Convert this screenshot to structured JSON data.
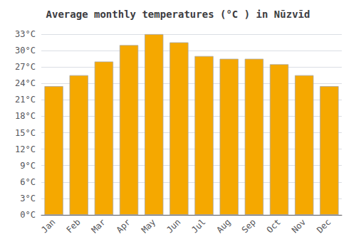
{
  "chart_data": {
    "type": "bar",
    "title": "Average monthly temperatures (°C ) in Nūzvīd",
    "categories": [
      "Jan",
      "Feb",
      "Mar",
      "Apr",
      "May",
      "Jun",
      "Jul",
      "Aug",
      "Sep",
      "Oct",
      "Nov",
      "Dec"
    ],
    "values": [
      23.5,
      25.5,
      28.0,
      31.0,
      33.0,
      31.5,
      29.0,
      28.5,
      28.5,
      27.5,
      25.5,
      23.5
    ],
    "color": "#F5A800",
    "ylim": [
      0,
      33
    ],
    "yticks": [
      {
        "value": 0,
        "label": "0°C"
      },
      {
        "value": 3,
        "label": "3°C"
      },
      {
        "value": 6,
        "label": "6°C"
      },
      {
        "value": 9,
        "label": "9°C"
      },
      {
        "value": 12,
        "label": "12°C"
      },
      {
        "value": 15,
        "label": "15°C"
      },
      {
        "value": 18,
        "label": "18°C"
      },
      {
        "value": 21,
        "label": "21°C"
      },
      {
        "value": 24,
        "label": "24°C"
      },
      {
        "value": 27,
        "label": "27°C"
      },
      {
        "value": 30,
        "label": "30°C"
      },
      {
        "value": 33,
        "label": "33°C"
      }
    ],
    "grid": true
  }
}
